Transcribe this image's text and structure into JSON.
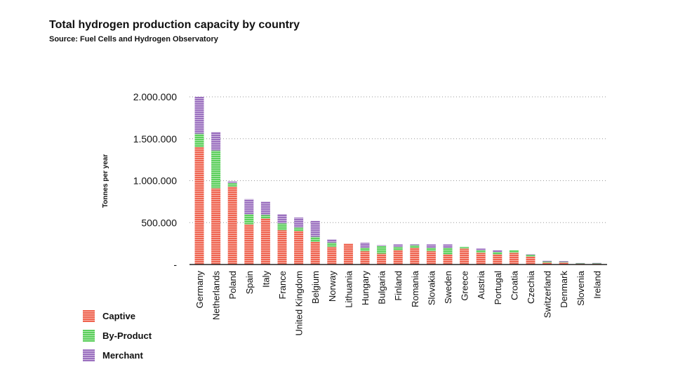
{
  "title": "Total hydrogen production capacity by country",
  "subtitle": "Source: Fuel Cells and Hydrogen Observatory",
  "colors": {
    "captive": "#ef6450",
    "by_product": "#5ccf5c",
    "merchant": "#9b70bf",
    "grid": "#999999",
    "axis": "#222222"
  },
  "legend": [
    "Captive",
    "By-Product",
    "Merchant"
  ],
  "chart_data": {
    "type": "bar",
    "stacked": true,
    "title": "Total hydrogen production capacity by country",
    "subtitle": "Source: Fuel Cells and Hydrogen Observatory",
    "xlabel": "",
    "ylabel": "Tonnes per year",
    "ylim": [
      0,
      2000000
    ],
    "yticks": [
      0,
      500000,
      1000000,
      1500000,
      2000000
    ],
    "ytick_labels": [
      "-",
      "500.000",
      "1.000.000",
      "1.500.000",
      "2.000.000"
    ],
    "grid": "horizontal dotted",
    "legend_position": "bottom-left",
    "categories": [
      "Germany",
      "Netherlands",
      "Poland",
      "Spain",
      "Italy",
      "France",
      "United Kingdom",
      "Belgium",
      "Norway",
      "Lithuania",
      "Hungary",
      "Bulgaria",
      "Finland",
      "Romania",
      "Slovakia",
      "Sweden",
      "Greece",
      "Austria",
      "Portugal",
      "Croatia",
      "Czechia",
      "Switzerland",
      "Denmark",
      "Slovenia",
      "Ireland"
    ],
    "series": [
      {
        "name": "Captive",
        "values": [
          1400000,
          910000,
          930000,
          480000,
          550000,
          410000,
          400000,
          270000,
          210000,
          250000,
          160000,
          130000,
          170000,
          200000,
          160000,
          120000,
          190000,
          140000,
          120000,
          140000,
          95000,
          25000,
          25000,
          8000,
          8000
        ]
      },
      {
        "name": "By-Product",
        "values": [
          160000,
          450000,
          40000,
          120000,
          40000,
          80000,
          40000,
          60000,
          50000,
          0,
          40000,
          90000,
          40000,
          30000,
          40000,
          80000,
          20000,
          30000,
          30000,
          30000,
          20000,
          10000,
          5000,
          5000,
          5000
        ]
      },
      {
        "name": "Merchant",
        "values": [
          440000,
          220000,
          20000,
          180000,
          160000,
          110000,
          120000,
          190000,
          40000,
          0,
          60000,
          10000,
          30000,
          10000,
          40000,
          40000,
          0,
          20000,
          20000,
          0,
          10000,
          10000,
          10000,
          5000,
          7000
        ]
      }
    ]
  }
}
